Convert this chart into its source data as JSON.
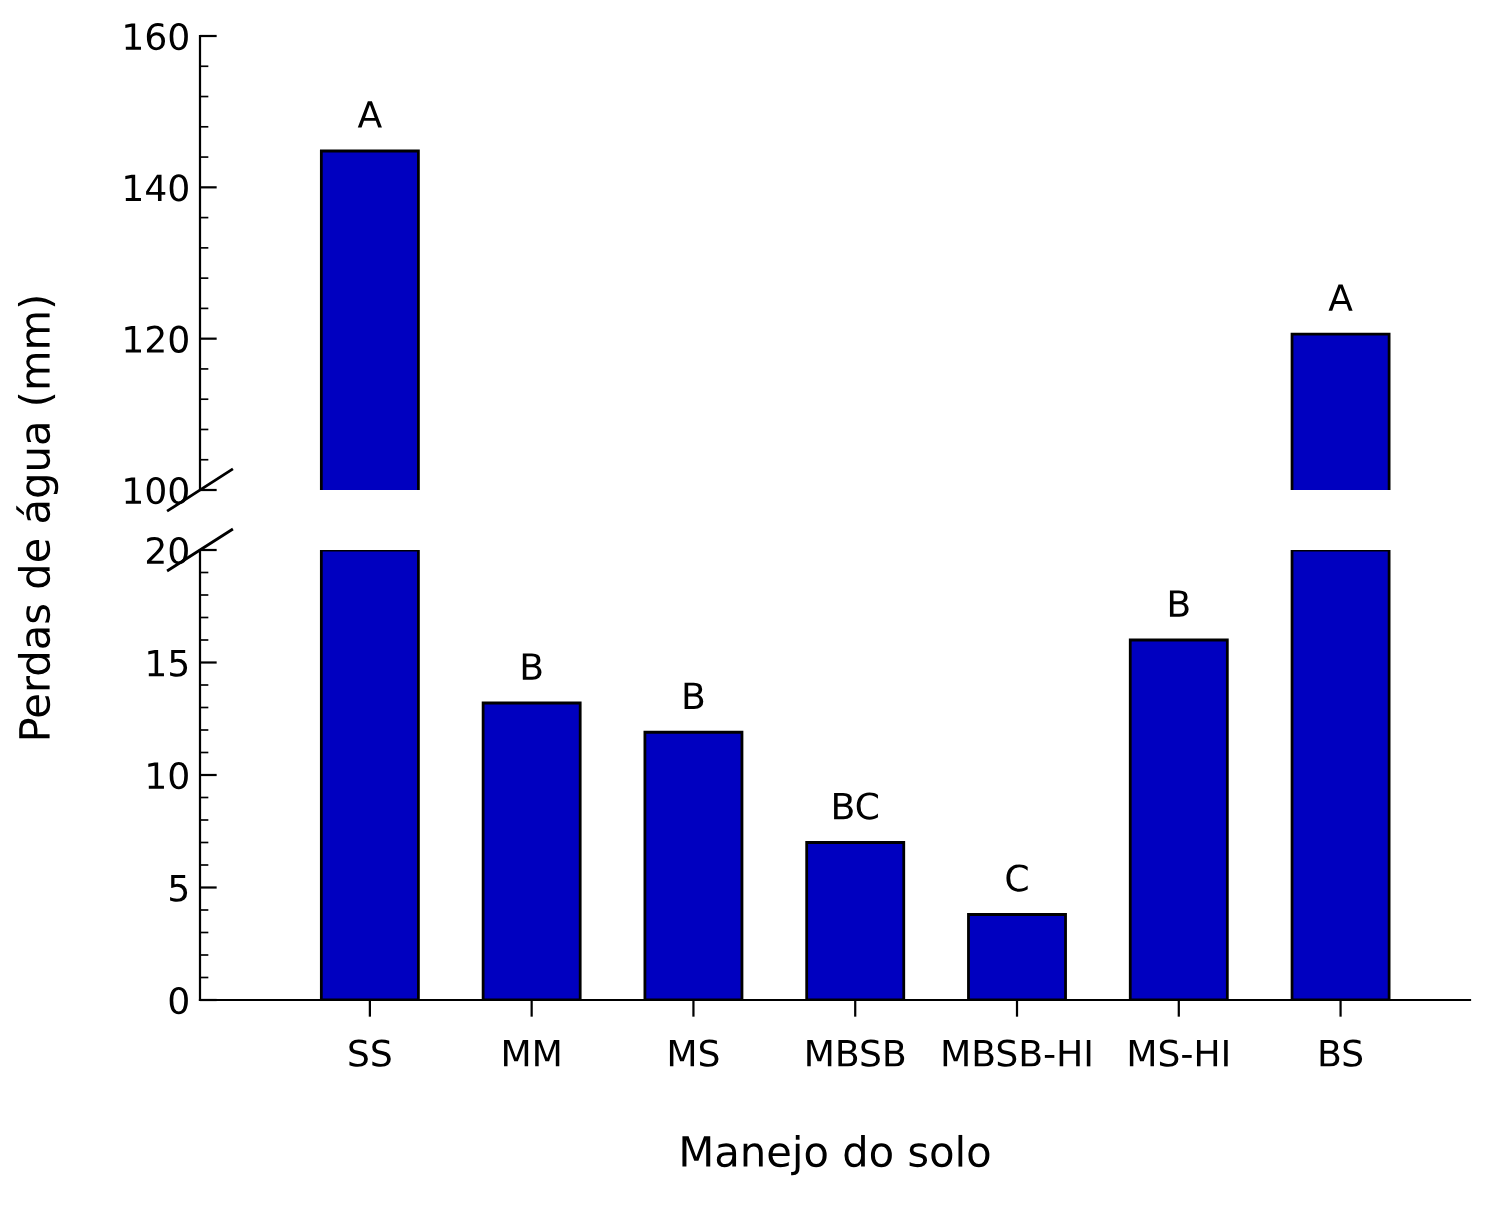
{
  "chart_data": [
    {
      "type": "bar",
      "categories": [
        "SS",
        "MM",
        "MS",
        "MBSB",
        "MBSB-HI",
        "MS-HI",
        "BS"
      ],
      "values": [
        144.8,
        null,
        null,
        null,
        null,
        null,
        120.6
      ],
      "color": "#0000c0",
      "ylim": [
        100,
        160
      ],
      "yticks": [
        100,
        120,
        140,
        160
      ],
      "tick_labels": "y",
      "grid": false,
      "annotations": [
        {
          "text": "A",
          "x": "SS",
          "y": 144.8
        },
        {
          "text": "A",
          "x": "BS",
          "y": 120.6
        }
      ]
    },
    {
      "type": "bar",
      "categories": [
        "SS",
        "MM",
        "MS",
        "MBSB",
        "MBSB-HI",
        "MS-HI",
        "BS"
      ],
      "values": [
        20,
        13.2,
        11.9,
        7.0,
        3.8,
        16.0,
        20
      ],
      "color": "#0000c0",
      "ylim": [
        0,
        20
      ],
      "yticks": [
        0,
        5,
        10,
        15,
        20
      ],
      "grid": false,
      "xlabel": "Manejo do solo",
      "ylabel": "Perdas de água (mm)",
      "annotations": [
        {
          "text": "B",
          "x": "MM",
          "y": 13.2
        },
        {
          "text": "B",
          "x": "MS",
          "y": 11.9
        },
        {
          "text": "BC",
          "x": "MBSB",
          "y": 7.0
        },
        {
          "text": "C",
          "x": "MBSB-HI",
          "y": 3.8
        },
        {
          "text": "B",
          "x": "MS-HI",
          "y": 16.0
        }
      ]
    }
  ]
}
